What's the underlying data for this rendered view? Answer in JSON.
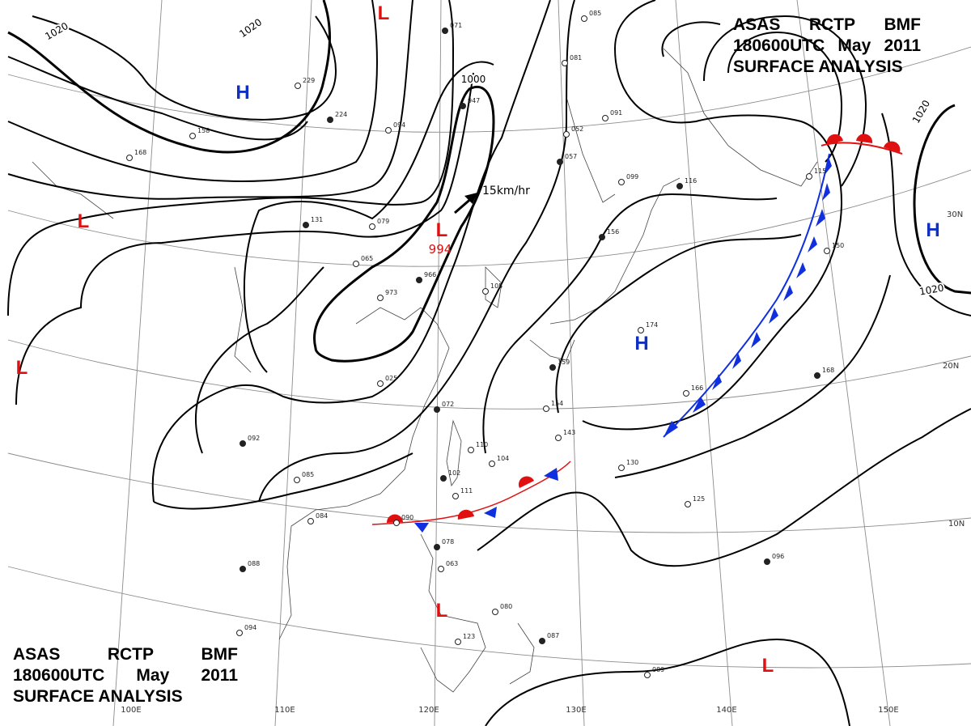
{
  "title": {
    "line1": [
      "ASAS",
      "RCTP",
      "BMF"
    ],
    "line2": [
      "180600UTC",
      "May",
      "2011"
    ],
    "line3": "SURFACE ANALYSIS"
  },
  "isobar_labels": [
    "1020",
    "1020",
    "1000",
    "1020",
    "1020"
  ],
  "pressure_centers": [
    {
      "type": "H",
      "color": "#1030c0"
    },
    {
      "type": "H",
      "color": "#1030c0"
    },
    {
      "type": "H",
      "color": "#1030c0"
    },
    {
      "type": "L",
      "color": "#e01010"
    },
    {
      "type": "L",
      "color": "#e01010"
    },
    {
      "type": "L",
      "color": "#e01010"
    },
    {
      "type": "L",
      "color": "#e01010"
    },
    {
      "type": "L",
      "color": "#e01010"
    },
    {
      "type": "L",
      "color": "#e01010"
    }
  ],
  "low_value": "994",
  "motion_label": "15km/hr",
  "longitude_labels": [
    "100E",
    "110E",
    "120E",
    "130E",
    "140E",
    "150E"
  ],
  "latitude_labels": [
    "30N",
    "20N",
    "10N"
  ],
  "station_values": [
    "071",
    "085",
    "081",
    "947",
    "094",
    "052",
    "057",
    "091",
    "099",
    "116",
    "115",
    "158",
    "224",
    "229",
    "168",
    "131",
    "079",
    "065",
    "966",
    "973",
    "025",
    "072",
    "110",
    "104",
    "102",
    "111",
    "090",
    "078",
    "063",
    "080",
    "087",
    "143",
    "154",
    "159",
    "130",
    "125",
    "096",
    "094",
    "089",
    "088",
    "084",
    "085",
    "092",
    "123",
    "174",
    "168",
    "166",
    "150",
    "156",
    "105"
  ],
  "colors": {
    "isobar": "#000000",
    "cold_front": "#1030e0",
    "warm_front": "#e01010",
    "graticule": "#888888"
  }
}
